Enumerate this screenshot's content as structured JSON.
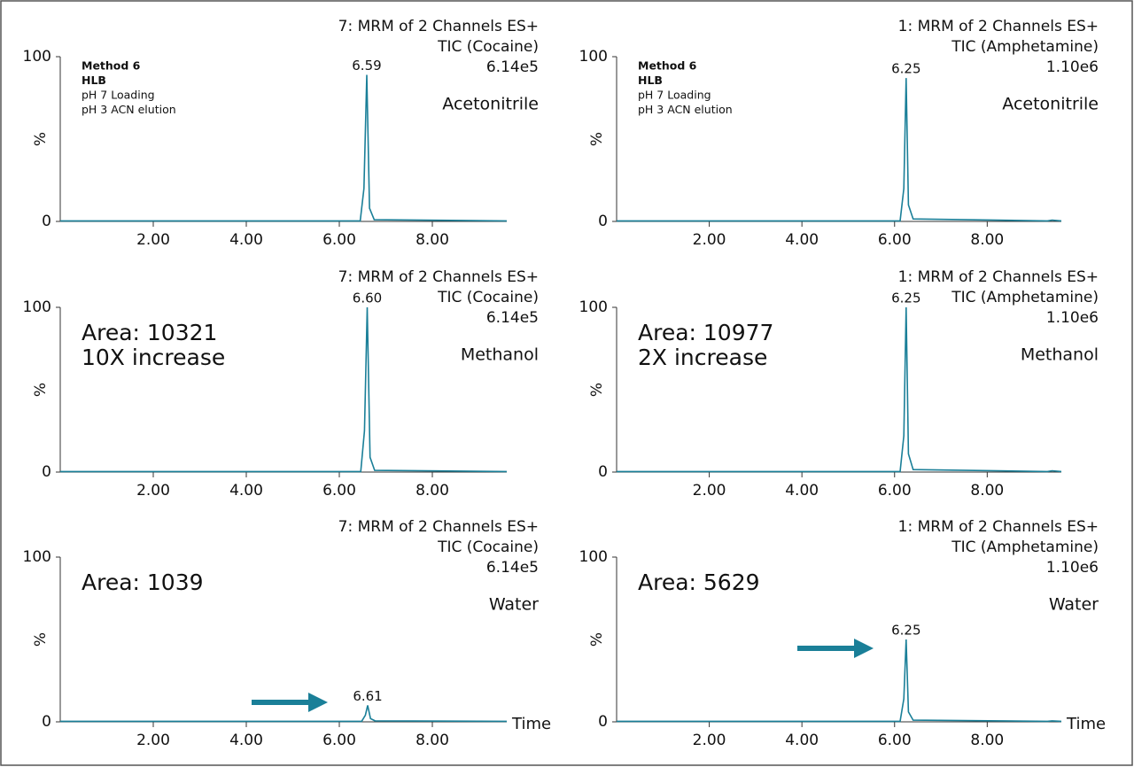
{
  "chart_data": [
    {
      "type": "line",
      "header": [
        "7: MRM of 2 Channels ES+",
        "TIC (Cocaine)",
        "6.14e5"
      ],
      "solvent": "Acetonitrile",
      "method": [
        "Method 6",
        "HLB",
        "pH 7 Loading",
        "pH 3 ACN elution"
      ],
      "y_label": "%",
      "peak_label": "6.59",
      "x": [
        0,
        6.45,
        6.53,
        6.59,
        6.65,
        6.75,
        9.6
      ],
      "values": [
        0.3,
        0.3,
        20,
        89,
        8,
        1,
        0.3
      ],
      "color": "#1a7f98",
      "xlim": [
        0,
        9.6
      ],
      "ylim": [
        0,
        100
      ],
      "yticks": [
        0,
        100
      ],
      "xticks": [
        {
          "value": 2,
          "label": "2.00"
        },
        {
          "value": 4,
          "label": "4.00"
        },
        {
          "value": 6,
          "label": "6.00"
        },
        {
          "value": 8,
          "label": "8.00"
        }
      ]
    },
    {
      "type": "line",
      "header": [
        "1: MRM of 2 Channels ES+",
        "TIC (Amphetamine)",
        "1.10e6"
      ],
      "solvent": "Acetonitrile",
      "method": [
        "Method 6",
        "HLB",
        "pH 7 Loading",
        "pH 3 ACN elution"
      ],
      "y_label": "%",
      "peak_label": "6.25",
      "x": [
        0,
        6.12,
        6.2,
        6.25,
        6.3,
        6.4,
        9.3,
        9.4,
        9.6
      ],
      "values": [
        0.3,
        0.3,
        20,
        87,
        10,
        1.5,
        0.3,
        0.8,
        0.3
      ],
      "color": "#1a7f98",
      "xlim": [
        0,
        9.6
      ],
      "ylim": [
        0,
        100
      ],
      "yticks": [
        0,
        100
      ],
      "xticks": [
        {
          "value": 2,
          "label": "2.00"
        },
        {
          "value": 4,
          "label": "4.00"
        },
        {
          "value": 6,
          "label": "6.00"
        },
        {
          "value": 8,
          "label": "8.00"
        }
      ]
    },
    {
      "type": "line",
      "header": [
        "7: MRM of 2 Channels ES+",
        "TIC (Cocaine)",
        "6.14e5"
      ],
      "solvent": "Methanol",
      "annotations": [
        "Area: 10321",
        "10X increase"
      ],
      "y_label": "%",
      "peak_label": "6.60",
      "x": [
        0,
        6.46,
        6.54,
        6.6,
        6.66,
        6.76,
        9.6
      ],
      "values": [
        0.3,
        0.3,
        25,
        100,
        9,
        1,
        0.3
      ],
      "color": "#1a7f98",
      "xlim": [
        0,
        9.6
      ],
      "ylim": [
        0,
        100
      ],
      "yticks": [
        0,
        100
      ],
      "xticks": [
        {
          "value": 2,
          "label": "2.00"
        },
        {
          "value": 4,
          "label": "4.00"
        },
        {
          "value": 6,
          "label": "6.00"
        },
        {
          "value": 8,
          "label": "8.00"
        }
      ]
    },
    {
      "type": "line",
      "header": [
        "1: MRM of 2 Channels ES+",
        "TIC (Amphetamine)",
        "1.10e6"
      ],
      "solvent": "Methanol",
      "annotations": [
        "Area: 10977",
        "2X increase"
      ],
      "y_label": "%",
      "peak_label": "6.25",
      "x": [
        0,
        6.12,
        6.2,
        6.25,
        6.3,
        6.4,
        9.3,
        9.4,
        9.6
      ],
      "values": [
        0.3,
        0.3,
        22,
        100,
        11,
        1.5,
        0.3,
        0.8,
        0.3
      ],
      "color": "#1a7f98",
      "xlim": [
        0,
        9.6
      ],
      "ylim": [
        0,
        100
      ],
      "yticks": [
        0,
        100
      ],
      "xticks": [
        {
          "value": 2,
          "label": "2.00"
        },
        {
          "value": 4,
          "label": "4.00"
        },
        {
          "value": 6,
          "label": "6.00"
        },
        {
          "value": 8,
          "label": "8.00"
        }
      ]
    },
    {
      "type": "line",
      "header": [
        "7: MRM of 2 Channels ES+",
        "TIC (Cocaine)",
        "6.14e5"
      ],
      "solvent": "Water",
      "annotations": [
        "Area: 1039"
      ],
      "y_label": "%",
      "x_label": "Time",
      "peak_label": "6.61",
      "x": [
        0,
        6.48,
        6.56,
        6.61,
        6.67,
        6.77,
        9.6
      ],
      "values": [
        0.3,
        0.3,
        4,
        10,
        2,
        0.6,
        0.3
      ],
      "color": "#1a7f98",
      "xlim": [
        0,
        9.6
      ],
      "ylim": [
        0,
        100
      ],
      "yticks": [
        0,
        100
      ],
      "xticks": [
        {
          "value": 2,
          "label": "2.00"
        },
        {
          "value": 4,
          "label": "4.00"
        },
        {
          "value": 6,
          "label": "6.00"
        },
        {
          "value": 8,
          "label": "8.00"
        }
      ]
    },
    {
      "type": "line",
      "header": [
        "1: MRM of 2 Channels ES+",
        "TIC (Amphetamine)",
        "1.10e6"
      ],
      "solvent": "Water",
      "annotations": [
        "Area: 5629"
      ],
      "y_label": "%",
      "x_label": "Time",
      "peak_label": "6.25",
      "x": [
        0,
        6.12,
        6.2,
        6.25,
        6.3,
        6.4,
        9.3,
        9.4,
        9.6
      ],
      "values": [
        0.3,
        0.3,
        14,
        50,
        6,
        1,
        0.3,
        0.6,
        0.3
      ],
      "color": "#1a7f98",
      "xlim": [
        0,
        9.6
      ],
      "ylim": [
        0,
        100
      ],
      "yticks": [
        0,
        100
      ],
      "xticks": [
        {
          "value": 2,
          "label": "2.00"
        },
        {
          "value": 4,
          "label": "4.00"
        },
        {
          "value": 6,
          "label": "6.00"
        },
        {
          "value": 8,
          "label": "8.00"
        }
      ]
    }
  ]
}
